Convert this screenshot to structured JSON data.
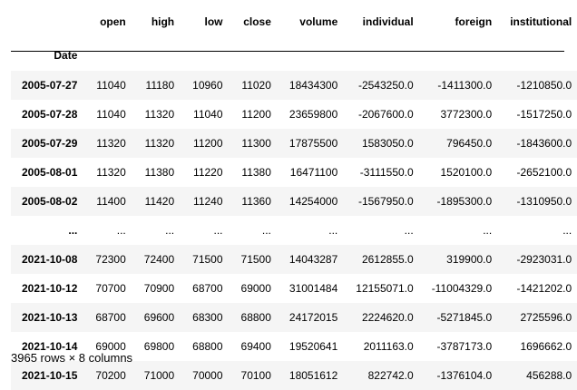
{
  "table": {
    "columns": [
      "open",
      "high",
      "low",
      "close",
      "volume",
      "individual",
      "foreign",
      "institutional"
    ],
    "index_name": "Date",
    "rows": [
      {
        "date": "2005-07-27",
        "values": [
          "11040",
          "11180",
          "10960",
          "11020",
          "18434300",
          "-2543250.0",
          "-1411300.0",
          "-1210850.0"
        ]
      },
      {
        "date": "2005-07-28",
        "values": [
          "11040",
          "11320",
          "11040",
          "11200",
          "23659800",
          "-2067600.0",
          "3772300.0",
          "-1517250.0"
        ]
      },
      {
        "date": "2005-07-29",
        "values": [
          "11320",
          "11320",
          "11200",
          "11300",
          "17875500",
          "1583050.0",
          "796450.0",
          "-1843600.0"
        ]
      },
      {
        "date": "2005-08-01",
        "values": [
          "11320",
          "11380",
          "11220",
          "11380",
          "16471100",
          "-3111550.0",
          "1520100.0",
          "-2652100.0"
        ]
      },
      {
        "date": "2005-08-02",
        "values": [
          "11400",
          "11420",
          "11240",
          "11360",
          "14254000",
          "-1567950.0",
          "-1895300.0",
          "-1310950.0"
        ]
      },
      {
        "date": "...",
        "values": [
          "...",
          "...",
          "...",
          "...",
          "...",
          "...",
          "...",
          "..."
        ]
      },
      {
        "date": "2021-10-08",
        "values": [
          "72300",
          "72400",
          "71500",
          "71500",
          "14043287",
          "2612855.0",
          "319900.0",
          "-2923031.0"
        ]
      },
      {
        "date": "2021-10-12",
        "values": [
          "70700",
          "70900",
          "68700",
          "69000",
          "31001484",
          "12155071.0",
          "-11004329.0",
          "-1421202.0"
        ]
      },
      {
        "date": "2021-10-13",
        "values": [
          "68700",
          "69600",
          "68300",
          "68800",
          "24172015",
          "2224620.0",
          "-5271845.0",
          "2725596.0"
        ]
      },
      {
        "date": "2021-10-14",
        "values": [
          "69000",
          "69800",
          "68800",
          "69400",
          "19520641",
          "2011163.0",
          "-3787173.0",
          "1696662.0"
        ]
      },
      {
        "date": "2021-10-15",
        "values": [
          "70200",
          "71000",
          "70000",
          "70100",
          "18051612",
          "822742.0",
          "-1376104.0",
          "456288.0"
        ]
      }
    ]
  },
  "footer": {
    "shape_text": "3965 rows × 8 columns"
  }
}
